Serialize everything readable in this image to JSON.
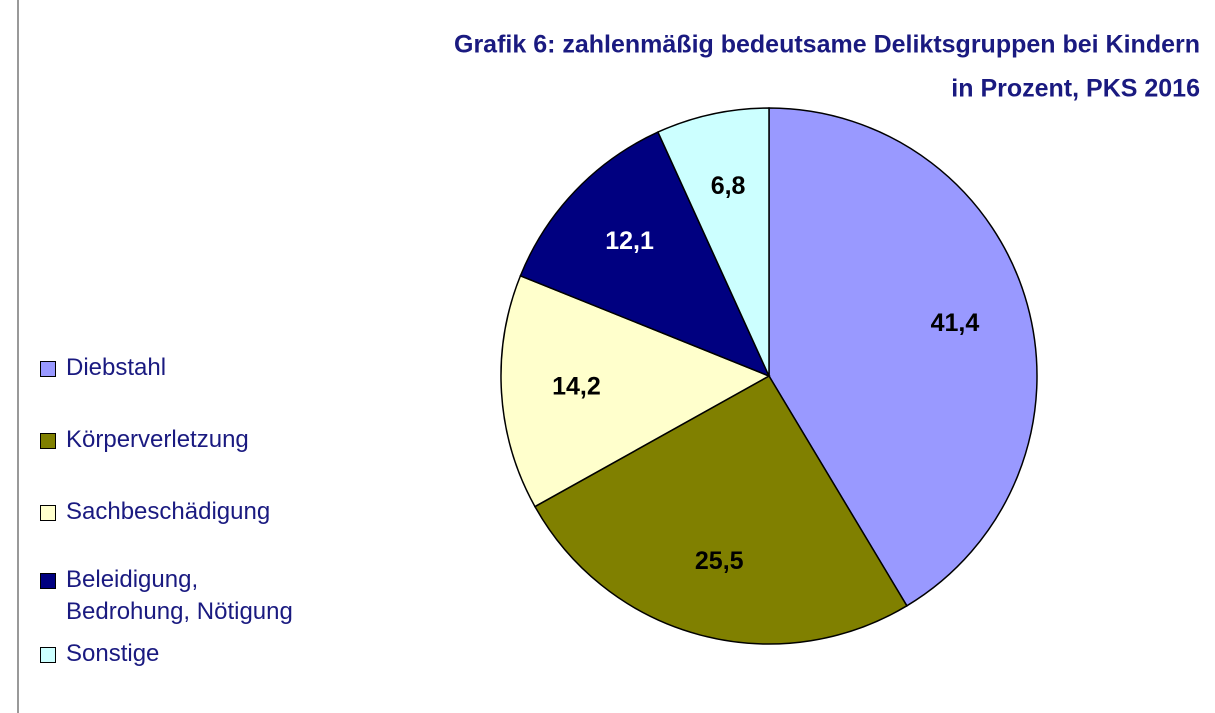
{
  "chart_data": {
    "type": "pie",
    "title": [
      "Grafik 6: zahlenmäßig bedeutsame Deliktsgruppen bei Kindern",
      "in Prozent, PKS 2016"
    ],
    "categories": [
      "Diebstahl",
      "Körperverletzung",
      "Sachbeschädigung",
      "Beleidigung, Bedrohung, Nötigung",
      "Sonstige"
    ],
    "values": [
      41.4,
      25.5,
      14.2,
      12.1,
      6.8
    ],
    "value_labels": [
      "41,4",
      "25,5",
      "14,2",
      "12,1",
      "6,8"
    ],
    "colors": [
      "#9999ff",
      "#808000",
      "#ffffcc",
      "#000080",
      "#ccffff"
    ],
    "label_colors": [
      "#000000",
      "#000000",
      "#000000",
      "#ffffff",
      "#000000"
    ],
    "legend": "left"
  }
}
